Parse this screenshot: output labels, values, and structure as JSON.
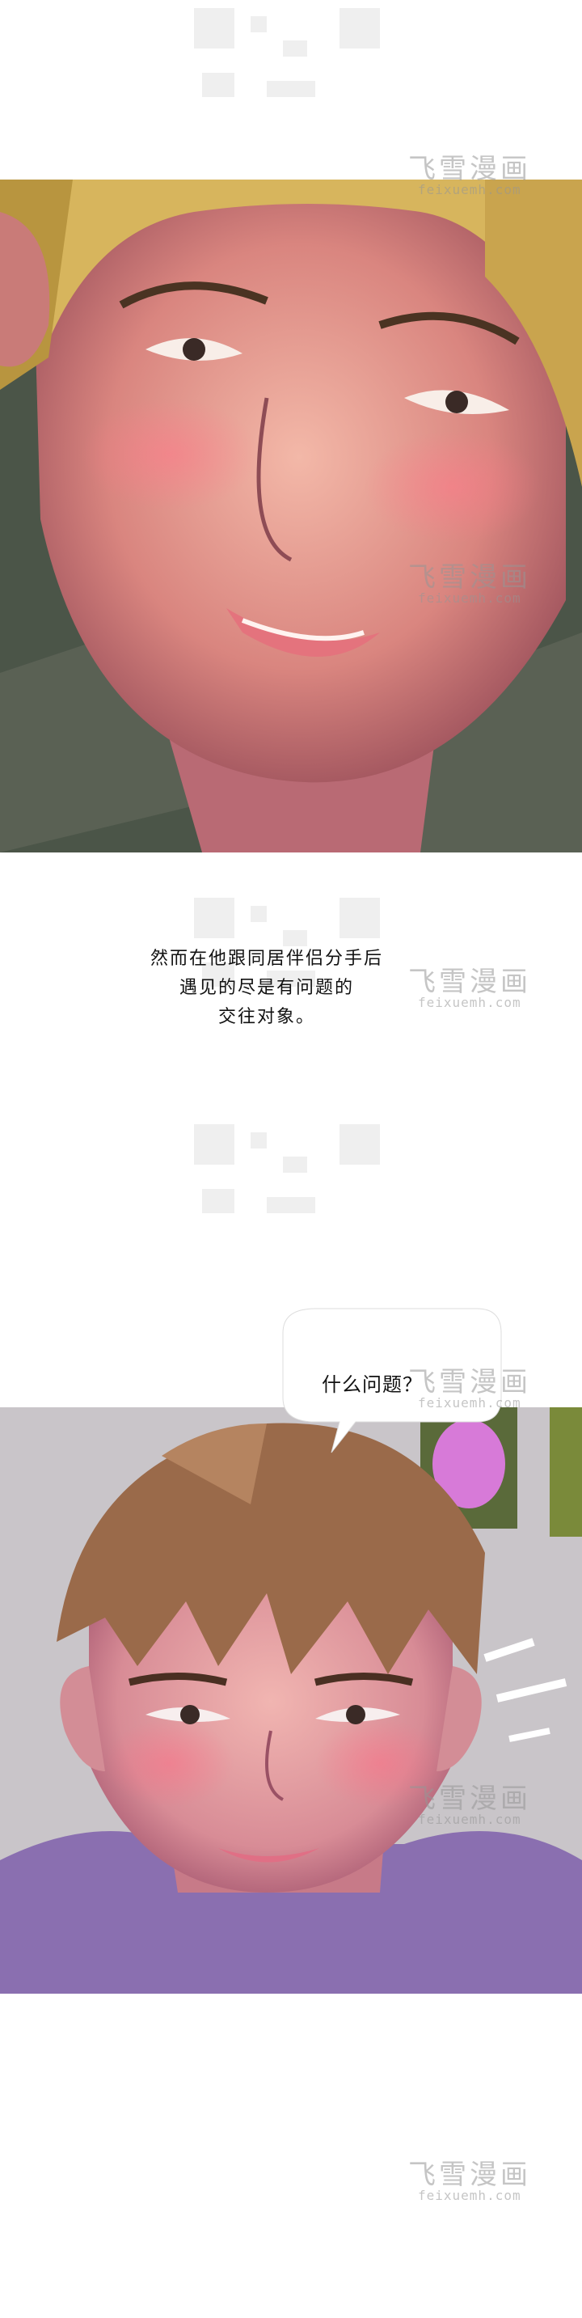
{
  "narration": {
    "lines": [
      "然而在他跟同居伴侣分手后",
      "遇见的尽是有问题的",
      "交往对象。"
    ]
  },
  "speech_bubble": {
    "text": "什么问题？"
  },
  "watermark": {
    "title": "飞雪漫画",
    "url": "feixuemh.com"
  },
  "colors": {
    "panel1_background": "#4b5548",
    "panel2_background": "#c9c5c9",
    "hair_blonde": "#d7b55d",
    "hair_brown": "#9a6a4a",
    "skin": "#e7a9a5"
  }
}
